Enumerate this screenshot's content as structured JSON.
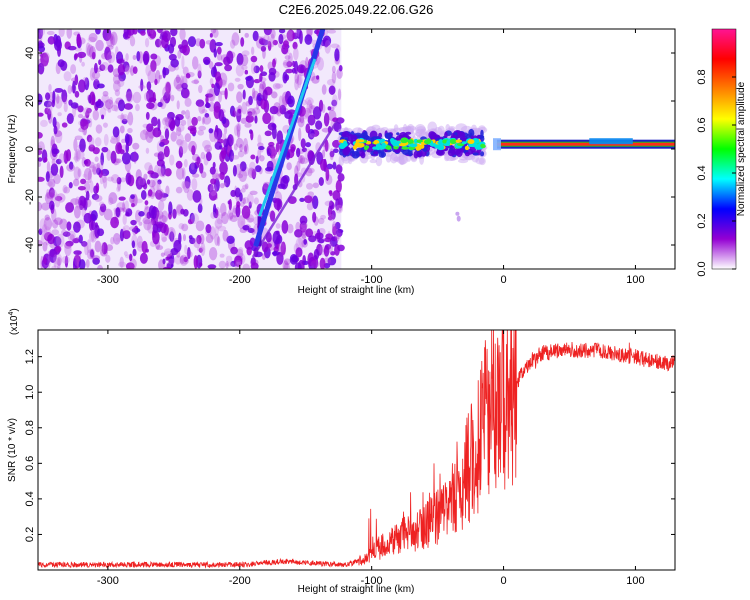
{
  "title": "C2E6.2025.049.22.06.G26",
  "chart_data": [
    {
      "type": "heatmap",
      "name": "spectrogram",
      "xlabel": "Height of straight line (km)",
      "ylabel": "Frequency (Hz)",
      "xlim": [
        -353,
        130
      ],
      "ylim": [
        -50,
        50
      ],
      "xticks": [
        -300,
        -200,
        -100,
        0,
        100
      ],
      "yticks": [
        -40,
        -20,
        0,
        20,
        40
      ],
      "colorbar": {
        "label": "Normalized spectral amplitude",
        "range": [
          0,
          1
        ],
        "ticks": [
          "0.0",
          "0.2",
          "0.4",
          "0.6",
          "0.8"
        ],
        "tick_values": [
          0.0,
          0.2,
          0.4,
          0.6,
          0.8
        ],
        "colors": [
          "#ffffff",
          "#9400d3",
          "#0000ff",
          "#00ffff",
          "#00ff00",
          "#ffff00",
          "#ff7f00",
          "#ff0000",
          "#ff1493"
        ]
      },
      "features": {
        "noise_region_x": [
          -353,
          -123
        ],
        "diagonal_line": {
          "x": [
            -185,
            -137
          ],
          "y": [
            -28,
            50
          ]
        },
        "secondary_line": {
          "x": [
            -190,
            -126
          ],
          "y": [
            -45,
            12
          ]
        },
        "carrier_band": {
          "x": [
            -123,
            130
          ],
          "y": 2
        }
      }
    },
    {
      "type": "line",
      "name": "snr",
      "xlabel": "Height of straight line (km)",
      "ylabel": "SNR (10 * v/v)",
      "scale_label": "(x10",
      "scale_exp": "4",
      "xlim": [
        -353,
        130
      ],
      "ylim": [
        0,
        1.35
      ],
      "xticks": [
        -300,
        -200,
        -100,
        0,
        100
      ],
      "yticks": [
        0.2,
        0.4,
        0.6,
        0.8,
        1.0,
        1.2
      ],
      "ytick_labels": [
        "0.2",
        "0.4",
        "0.6",
        "0.8",
        "1.0",
        "1.2"
      ],
      "color": "#ee2222",
      "envelope": {
        "x": [
          -353,
          -200,
          -165,
          -150,
          -120,
          -105,
          -95,
          -80,
          -60,
          -50,
          -40,
          -30,
          -20,
          -15,
          -10,
          -5,
          0,
          5,
          10,
          15,
          20,
          25,
          30,
          40,
          50,
          60,
          70,
          80,
          90,
          100,
          110,
          120,
          130
        ],
        "y": [
          0.03,
          0.03,
          0.05,
          0.04,
          0.03,
          0.06,
          0.12,
          0.18,
          0.24,
          0.3,
          0.38,
          0.52,
          0.68,
          0.82,
          0.95,
          0.93,
          0.98,
          1.02,
          1.06,
          1.12,
          1.17,
          1.2,
          1.22,
          1.23,
          1.24,
          1.23,
          1.24,
          1.22,
          1.21,
          1.2,
          1.18,
          1.17,
          1.16
        ]
      }
    }
  ]
}
